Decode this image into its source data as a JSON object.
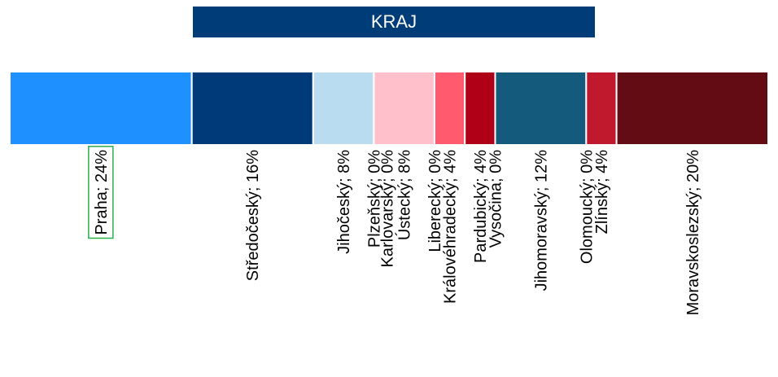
{
  "chart_data": {
    "type": "stacked-bar-100",
    "title": "KRAJ",
    "values": [
      24,
      16,
      8,
      0,
      0,
      8,
      0,
      4,
      4,
      0,
      12,
      0,
      4,
      20
    ],
    "value_labels": [
      "Praha; 24%",
      "Středočeský; 16%",
      "Jihočeský; 8%",
      "Plzeňský; 0%",
      "Karlovarský; 0%",
      "Ústecký; 8%",
      "Liberecký; 0%",
      "Královéhradecký; 4%",
      "Pardubický; 4%",
      "Vysočina; 0%",
      "Jihomoravský; 12%",
      "Olomoucký; 0%",
      "Zlínský; 4%",
      "Moravskoslezský; 20%"
    ],
    "colors": [
      "#1e90ff",
      "#003a78",
      "#b9dcf0",
      "#8fb8de",
      "#5a7fa8",
      "#ffc0cb",
      "#ff8a9a",
      "#ff5a6e",
      "#b00018",
      "#8a0014",
      "#145a7d",
      "#a0102a",
      "#c0182c",
      "#640c14"
    ]
  }
}
